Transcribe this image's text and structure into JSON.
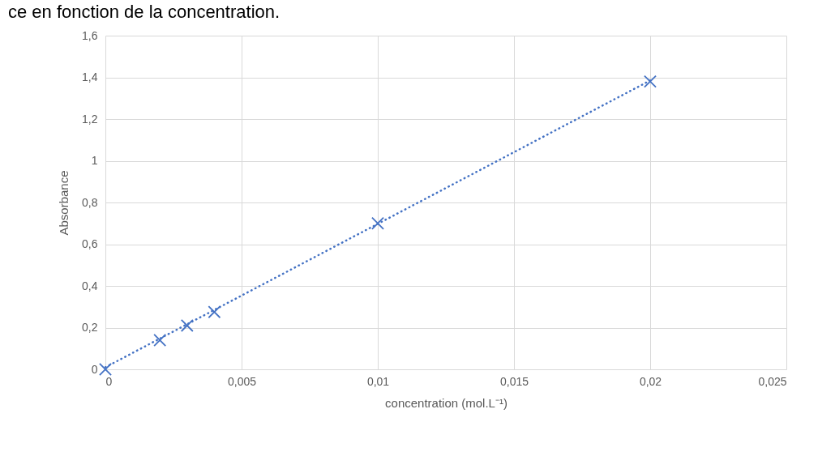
{
  "chart_data": {
    "type": "scatter",
    "title": "ce en fonction de la concentration.",
    "xlabel": "concentration (mol.L⁻¹)",
    "ylabel": "Absorbance",
    "series": [
      {
        "color": "#4472c4",
        "marker": "cross",
        "x": [
          0,
          0.002,
          0.003,
          0.004,
          0.01,
          0.02
        ],
        "values": [
          0,
          0.14,
          0.21,
          0.275,
          0.7,
          1.38
        ]
      },
      {
        "type": "line",
        "color": "#4472c4",
        "line_style": "dotted",
        "marker": "none",
        "x": [
          0,
          0.02
        ],
        "values": [
          0.01,
          1.385
        ]
      }
    ],
    "xlim": [
      0,
      0.025
    ],
    "xticks": [
      0,
      {
        "value": 0.005,
        "label": "0,005"
      },
      {
        "value": 0.01,
        "label": "0,01"
      },
      {
        "value": 0.015,
        "label": "0,015"
      },
      {
        "value": 0.02,
        "label": "0,02"
      },
      {
        "value": 0.025,
        "label": "0,025"
      }
    ],
    "ylim": [
      0,
      1.6
    ],
    "yticks": [
      0,
      {
        "value": 0.2,
        "label": "0,2"
      },
      {
        "value": 0.4,
        "label": "0,4"
      },
      {
        "value": 0.6,
        "label": "0,6"
      },
      {
        "value": 0.8,
        "label": "0,8"
      },
      1,
      {
        "value": 1.2,
        "label": "1,2"
      },
      {
        "value": 1.4,
        "label": "1,4"
      },
      {
        "value": 1.6,
        "label": "1,6"
      }
    ],
    "grid": true
  }
}
